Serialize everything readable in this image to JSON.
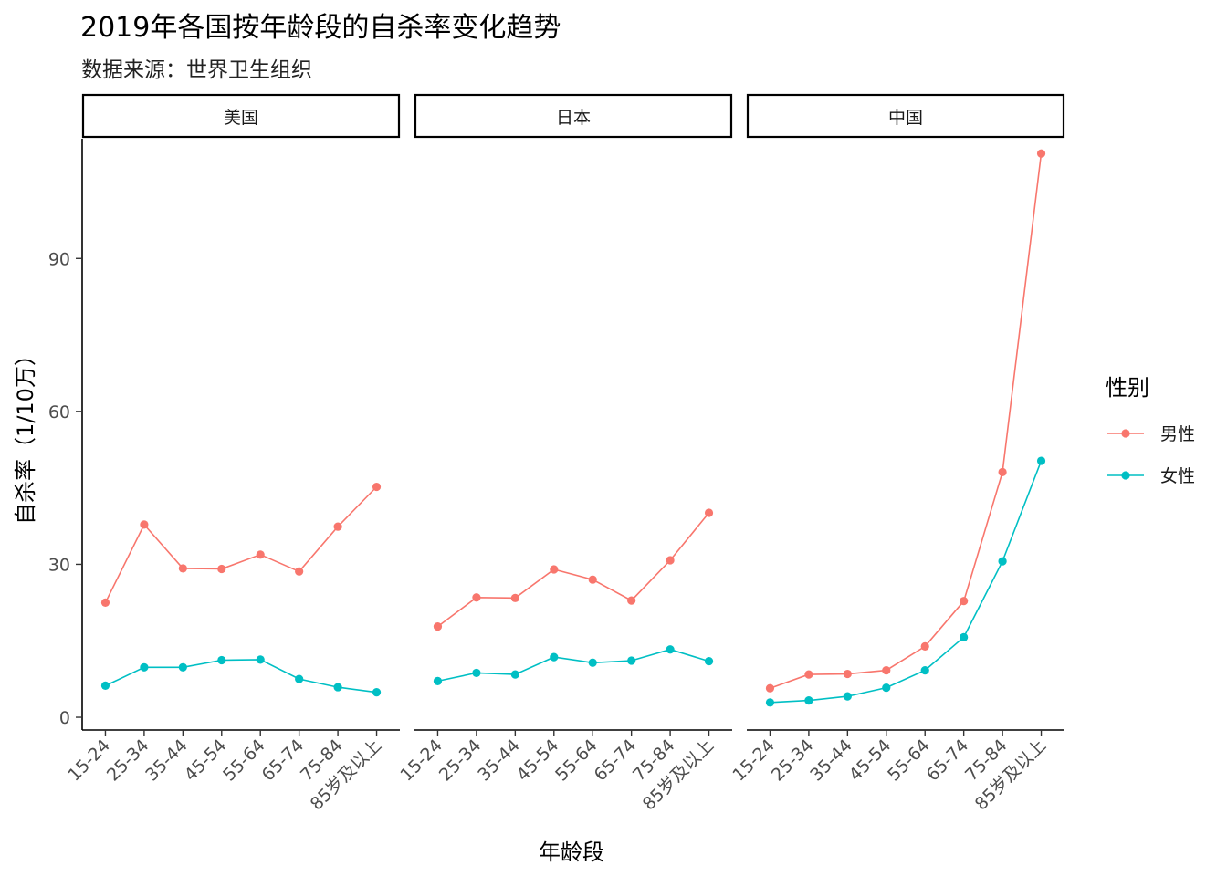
{
  "chart_data": {
    "type": "line",
    "title": "2019年各国按年龄段的自杀率变化趋势",
    "subtitle": "数据来源：世界卫生组织",
    "xlabel": "年龄段",
    "ylabel": "自杀率（1/10万）",
    "ylim": [
      -2.5,
      113.5
    ],
    "yticks": [
      0,
      30,
      60,
      90
    ],
    "categories": [
      "15-24",
      "25-34",
      "35-44",
      "45-54",
      "55-64",
      "65-74",
      "75-84",
      "85岁及以上"
    ],
    "grid": false,
    "legend": {
      "title": "性别",
      "position": "right",
      "items": [
        "男性",
        "女性"
      ]
    },
    "colors": {
      "男性": "#F8766D",
      "女性": "#00BFC4"
    },
    "panels": [
      {
        "label": "美国",
        "series": [
          {
            "name": "男性",
            "values": [
              22.5,
              37.8,
              29.2,
              29.1,
              31.9,
              28.6,
              37.4,
              45.2
            ]
          },
          {
            "name": "女性",
            "values": [
              6.2,
              9.8,
              9.8,
              11.2,
              11.3,
              7.5,
              5.9,
              4.9
            ]
          }
        ]
      },
      {
        "label": "日本",
        "series": [
          {
            "name": "男性",
            "values": [
              17.8,
              23.5,
              23.4,
              29.0,
              27.0,
              22.9,
              30.8,
              40.1
            ]
          },
          {
            "name": "女性",
            "values": [
              7.1,
              8.7,
              8.4,
              11.8,
              10.7,
              11.1,
              13.3,
              11.0
            ]
          }
        ]
      },
      {
        "label": "中国",
        "series": [
          {
            "name": "男性",
            "values": [
              5.7,
              8.4,
              8.5,
              9.2,
              13.9,
              22.8,
              48.1,
              110.6
            ]
          },
          {
            "name": "女性",
            "values": [
              2.9,
              3.3,
              4.1,
              5.8,
              9.2,
              15.7,
              30.6,
              50.3
            ]
          }
        ]
      }
    ]
  }
}
